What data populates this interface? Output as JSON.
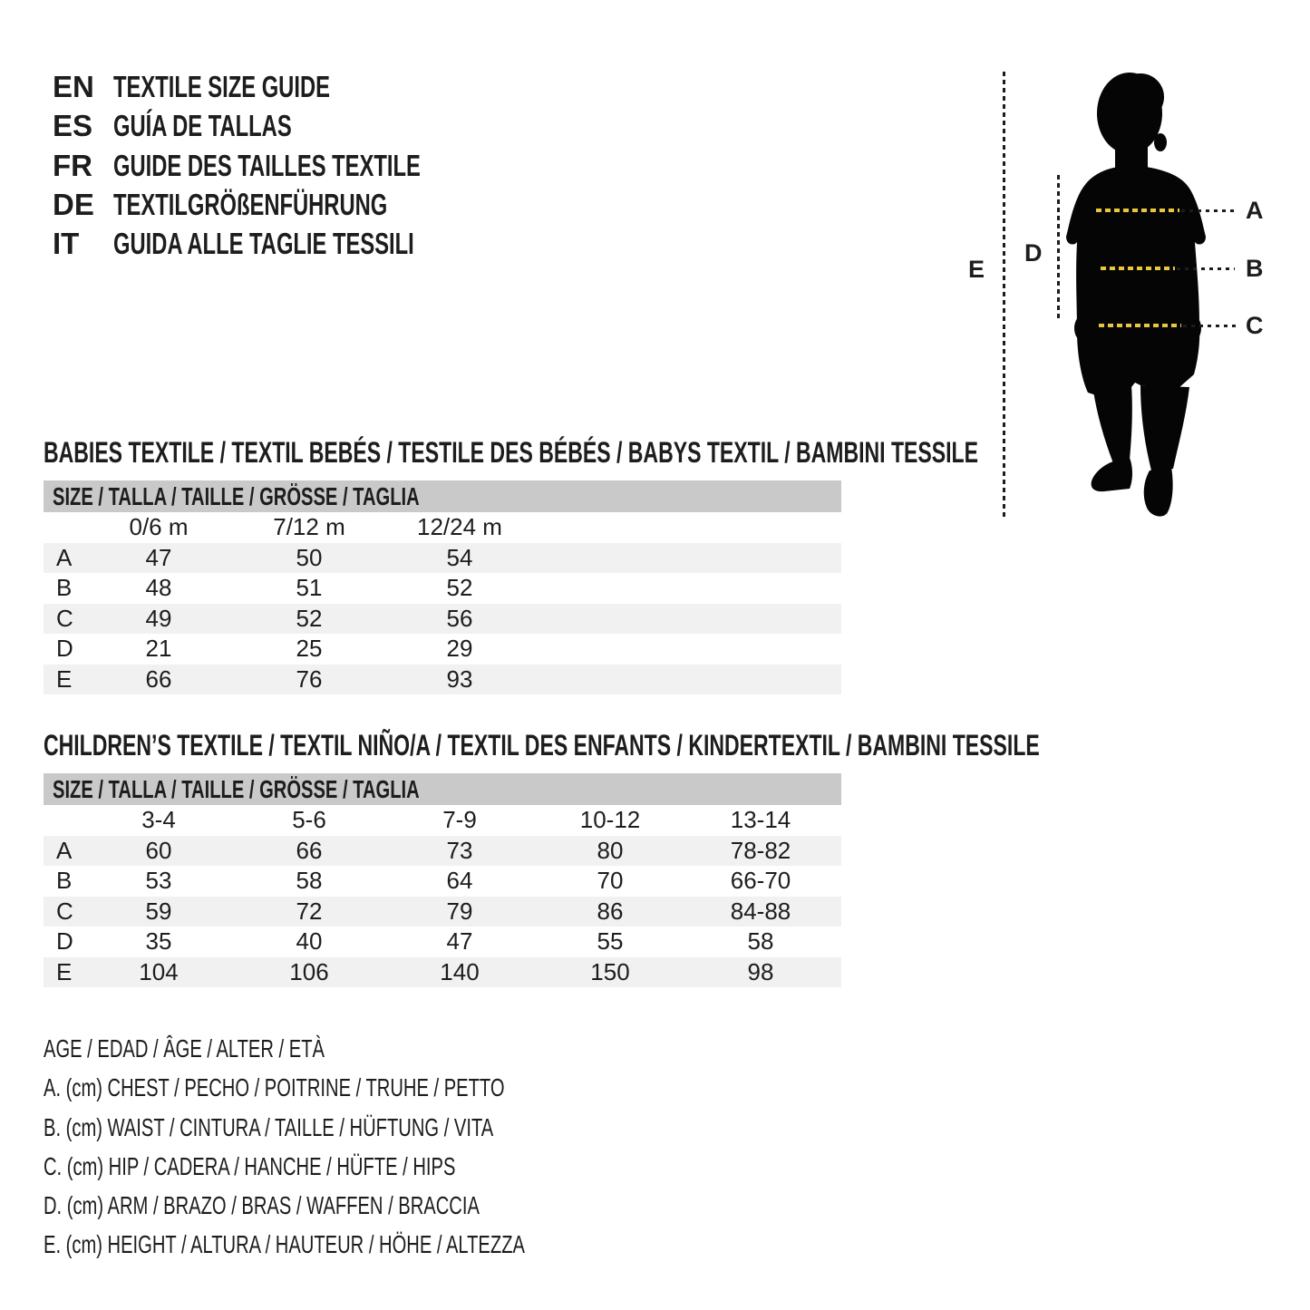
{
  "header": {
    "languages": [
      {
        "code": "EN",
        "title": "TEXTILE SIZE GUIDE"
      },
      {
        "code": "ES",
        "title": "GUÍA DE TALLAS"
      },
      {
        "code": "FR",
        "title": "GUIDE DES TAILLES TEXTILE"
      },
      {
        "code": "DE",
        "title": "TEXTILGRÖßENFÜHRUNG"
      },
      {
        "code": "IT",
        "title": "GUIDA ALLE TAGLIE TESSILI"
      }
    ]
  },
  "figure": {
    "labels": {
      "a": "A",
      "b": "B",
      "c": "C",
      "d": "D",
      "e": "E"
    },
    "dash_color": "#e8c73e",
    "line_color": "#1c1c1c",
    "silhouette_color": "#050505"
  },
  "tables": [
    {
      "title": "BABIES TEXTILE / TEXTIL BEBÉS / TESTILE DES BÉBÉS / BABYS TEXTIL / BAMBINI TESSILE",
      "size_header": "SIZE / TALLA / TAILLE / GRÖSSE / TAGLIA",
      "columns": [
        "0/6 m",
        "7/12 m",
        "12/24 m"
      ],
      "rows": [
        {
          "label": "A",
          "values": [
            "47",
            "50",
            "54"
          ]
        },
        {
          "label": "B",
          "values": [
            "48",
            "51",
            "52"
          ]
        },
        {
          "label": "C",
          "values": [
            "49",
            "52",
            "56"
          ]
        },
        {
          "label": "D",
          "values": [
            "21",
            "25",
            "29"
          ]
        },
        {
          "label": "E",
          "values": [
            "66",
            "76",
            "93"
          ]
        }
      ]
    },
    {
      "title": "CHILDREN’S TEXTILE / TEXTIL NIÑO/A / TEXTIL DES ENFANTS / KINDERTEXTIL / BAMBINI TESSILE",
      "size_header": "SIZE / TALLA / TAILLE / GRÖSSE / TAGLIA",
      "columns": [
        "3-4",
        "5-6",
        "7-9",
        "10-12",
        "13-14"
      ],
      "rows": [
        {
          "label": "A",
          "values": [
            "60",
            "66",
            "73",
            "80",
            "78-82"
          ]
        },
        {
          "label": "B",
          "values": [
            "53",
            "58",
            "64",
            "70",
            "66-70"
          ]
        },
        {
          "label": "C",
          "values": [
            "59",
            "72",
            "79",
            "86",
            "84-88"
          ]
        },
        {
          "label": "D",
          "values": [
            "35",
            "40",
            "47",
            "55",
            "58"
          ]
        },
        {
          "label": "E",
          "values": [
            "104",
            "106",
            "140",
            "150",
            "98"
          ]
        }
      ]
    }
  ],
  "legend": {
    "lines": [
      "AGE / EDAD / ÂGE / ALTER / ETÀ",
      "A. (cm) CHEST / PECHO / POITRINE / TRUHE / PETTO",
      "B. (cm) WAIST / CINTURA / TAILLE / HÜFTUNG / VITA",
      "C. (cm) HIP / CADERA / HANCHE / HÜFTE / HIPS",
      "D. (cm) ARM / BRAZO / BRAS / WAFFEN / BRACCIA",
      "E. (cm) HEIGHT / ALTURA / HAUTEUR / HÖHE / ALTEZZA"
    ]
  }
}
